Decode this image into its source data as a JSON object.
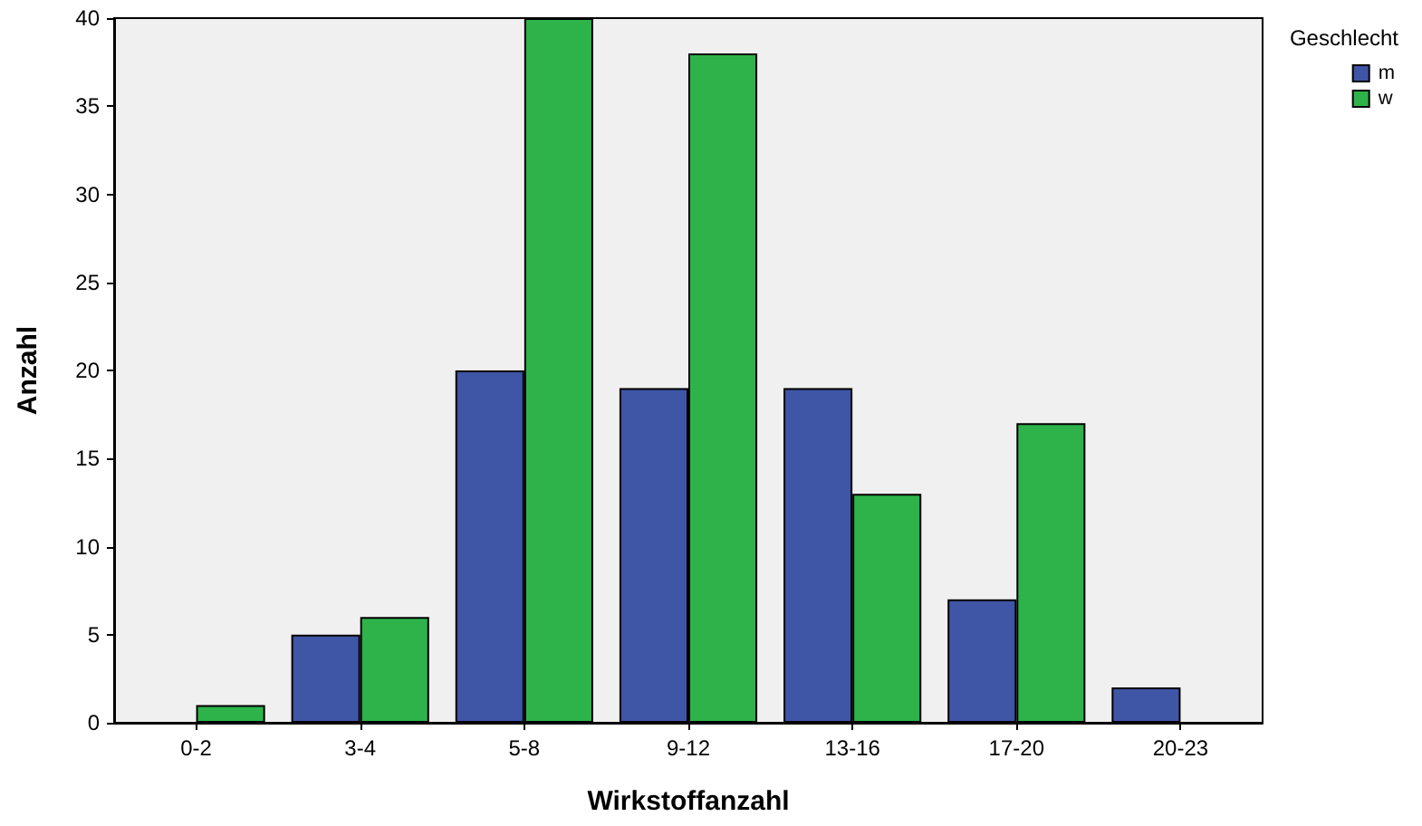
{
  "chart_data": {
    "type": "bar",
    "xlabel": "Wirkstoffanzahl",
    "ylabel": "Anzahl",
    "legend_title": "Geschlecht",
    "categories": [
      "0-2",
      "3-4",
      "5-8",
      "9-12",
      "13-16",
      "17-20",
      "20-23"
    ],
    "series": [
      {
        "name": "m",
        "color": "#3f55a6",
        "values": [
          null,
          5,
          20,
          19,
          19,
          7,
          2
        ]
      },
      {
        "name": "w",
        "color": "#2db34a",
        "values": [
          1,
          6,
          40,
          38,
          13,
          17,
          null
        ]
      }
    ],
    "ylim": [
      0,
      40
    ],
    "yticks": [
      0,
      5,
      10,
      15,
      20,
      25,
      30,
      35,
      40
    ],
    "grid": false,
    "legend": "top right"
  }
}
